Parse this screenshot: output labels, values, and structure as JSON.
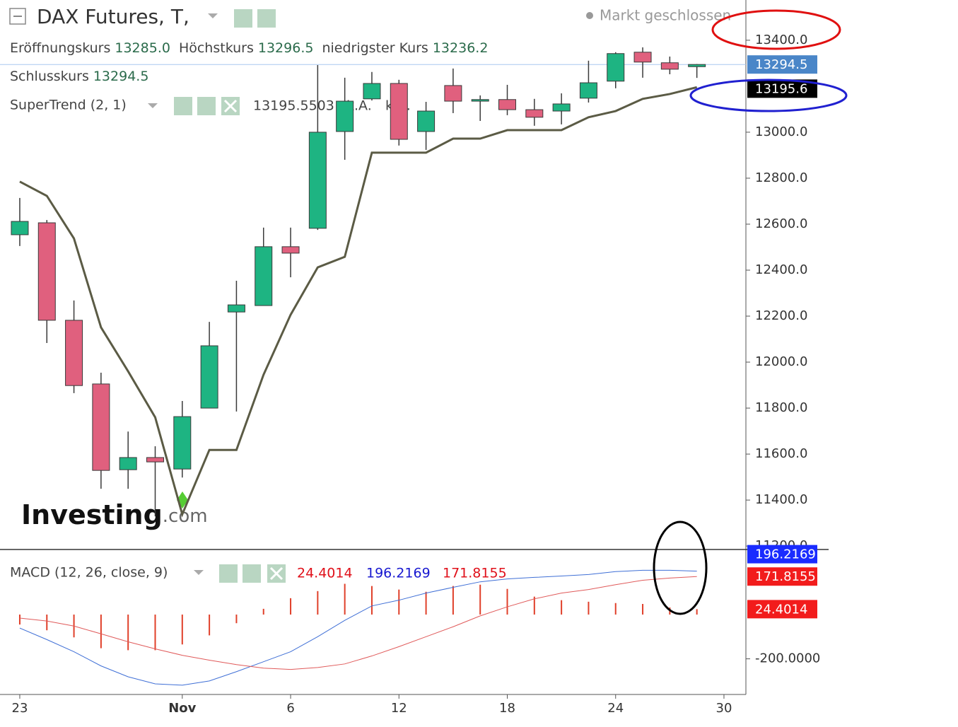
{
  "chart_data": [
    {
      "type": "candlestick",
      "title": "DAX Futures, T,",
      "status": "Markt geschlossen",
      "quote_labels": [
        "Eröffnungskurs",
        "Höchstkurs",
        "niedrigster Kurs",
        "Schlusskurs"
      ],
      "quote_values": [
        {
          "value": 13285,
          "label": "13285.0"
        },
        {
          "value": 13296.5,
          "label": "13296.5"
        },
        {
          "value": 13236.2,
          "label": "13236.2"
        },
        {
          "value": 13294.5,
          "label": "13294.5"
        }
      ],
      "watermark": [
        "Investing",
        ".com"
      ],
      "x": [
        0,
        1,
        2,
        3,
        4,
        5,
        6,
        7,
        8,
        9,
        10,
        11,
        12,
        13,
        14,
        15,
        16,
        17,
        18,
        19,
        20,
        21,
        22,
        23,
        24,
        25
      ],
      "xlim": [
        -0.73,
        26.81
      ],
      "open": [
        12554,
        12606,
        12182,
        11905,
        11532,
        11585,
        11535,
        11800,
        12218,
        12246,
        12502,
        12582,
        13003,
        13145,
        13212,
        13003,
        13203,
        13135,
        13142,
        13098,
        13092,
        13148,
        13222,
        13348,
        13302,
        13285
      ],
      "high": [
        12714,
        12618,
        12268,
        11954,
        11698,
        11634,
        11831,
        12175,
        12354,
        12585,
        12585,
        13292,
        13237,
        13262,
        13228,
        13132,
        13277,
        13160,
        13206,
        13145,
        13169,
        13311,
        13348,
        13369,
        13329,
        13296.5
      ],
      "low": [
        12505,
        12083,
        11865,
        11449,
        11449,
        11329,
        11498,
        11800,
        11785,
        12246,
        12369,
        12575,
        12880,
        13138,
        12942,
        12923,
        13083,
        13049,
        13074,
        13028,
        13034,
        13129,
        13191,
        13237,
        13252,
        13236.2
      ],
      "close": [
        12612,
        12182,
        11898,
        11529,
        11585,
        11566,
        11763,
        12071,
        12249,
        12502,
        12474,
        13000,
        13135,
        13212,
        12969,
        13092,
        13135,
        13142,
        13098,
        13065,
        13123,
        13215,
        13342,
        13305,
        13274,
        13294.5
      ],
      "up_color": "#1eb482",
      "down_color": "#e0607e",
      "edge_color": "#3a3a3a",
      "ylim": [
        11185,
        13575
      ],
      "yticks": [
        {
          "value": 11200,
          "label": "11200.0"
        },
        {
          "value": 11400,
          "label": "11400.0"
        },
        {
          "value": 11600,
          "label": "11600.0"
        },
        {
          "value": 11800,
          "label": "11800.0"
        },
        {
          "value": 12000,
          "label": "12000.0"
        },
        {
          "value": 12200,
          "label": "12200.0"
        },
        {
          "value": 12400,
          "label": "12400.0"
        },
        {
          "value": 12600,
          "label": "12600.0"
        },
        {
          "value": 12800,
          "label": "12800.0"
        },
        {
          "value": 13000,
          "label": "13000.0"
        },
        {
          "value": 13400,
          "label": "13400.0"
        }
      ],
      "last_price": {
        "value": 13294.5,
        "label": "13294.5",
        "color": "#4a86c8",
        "line_color": "#a8c8f0"
      },
      "overlays": [
        {
          "name": "SuperTrend (2, 1)",
          "color": "#5b5b45",
          "values": [
            12785,
            12723,
            12538,
            12151,
            11960,
            11760,
            11338,
            11618,
            11618,
            11945,
            12206,
            12412,
            12458,
            12911,
            12911,
            12911,
            12972,
            12972,
            13009,
            13009,
            13009,
            13065,
            13092,
            13145,
            13166,
            13195.5503
          ],
          "last_value": {
            "value": 13195.5503,
            "label": "13195.5503"
          },
          "readouts": [
            "k.A.",
            "k.A."
          ],
          "axis_tag": {
            "value": 13195.5503,
            "label": "13195.6"
          },
          "tag_color": "#000000"
        }
      ]
    },
    {
      "type": "macd",
      "name": "MACD (12, 26, close, 9)",
      "ylim": [
        -361,
        294
      ],
      "yticks": [
        {
          "value": -200,
          "label": "-200.0000"
        }
      ],
      "xlim": [
        -0.73,
        26.81
      ],
      "xticks": [
        {
          "value": 0,
          "label": "23"
        },
        {
          "value": 6,
          "label": "Nov"
        },
        {
          "value": 10,
          "label": "6"
        },
        {
          "value": 14,
          "label": "12"
        },
        {
          "value": 18,
          "label": "18"
        },
        {
          "value": 22,
          "label": "24"
        },
        {
          "value": 26,
          "label": "30"
        }
      ],
      "histogram": {
        "color": "#e0402a",
        "text_color": "#e0101a",
        "tag_color": "#f21c1c",
        "values": [
          -45,
          -71,
          -103,
          -152,
          -161,
          -161,
          -135,
          -94,
          -39,
          26,
          74,
          106,
          139,
          129,
          113,
          103,
          129,
          135,
          116,
          81,
          65,
          58,
          52,
          48,
          32,
          24.4014
        ],
        "last_label": "24.4014"
      },
      "macd": {
        "color": "#3f6fd6",
        "text_color": "#1818d0",
        "tag_color": "#1a2cff",
        "values": [
          -61,
          -113,
          -168,
          -232,
          -281,
          -313,
          -319,
          -300,
          -258,
          -213,
          -168,
          -100,
          -26,
          39,
          65,
          97,
          123,
          148,
          161,
          168,
          174,
          181,
          194,
          200,
          200,
          196.2169
        ],
        "last_label": "196.2169"
      },
      "signal": {
        "color": "#e05a5a",
        "text_color": "#e0101a",
        "tag_color": "#f21c1c",
        "values": [
          -16,
          -29,
          -52,
          -87,
          -123,
          -155,
          -184,
          -206,
          -226,
          -242,
          -248,
          -239,
          -223,
          -187,
          -145,
          -100,
          -55,
          -6,
          35,
          71,
          97,
          113,
          135,
          155,
          165,
          171.8155
        ],
        "last_label": "171.8155"
      }
    }
  ]
}
